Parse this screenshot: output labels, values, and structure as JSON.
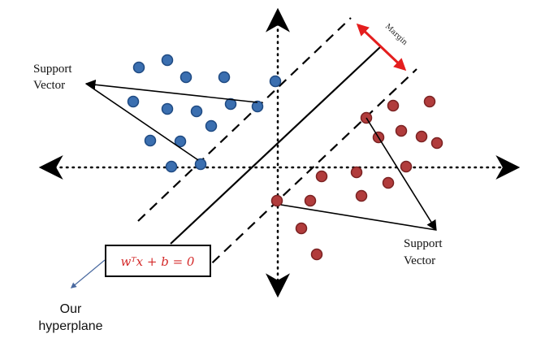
{
  "labels": {
    "support_vector_left_line1": "Support",
    "support_vector_left_line2": "Vector",
    "support_vector_right_line1": "Support",
    "support_vector_right_line2": "Vector",
    "margin": "Margin",
    "equation": "wᵀx + b = 0",
    "hyperplane_line1": "Our",
    "hyperplane_line2": "hyperplane"
  },
  "colors": {
    "blue_class": "#3b6fb0",
    "blue_stroke": "#1f4a82",
    "red_class": "#b13c3c",
    "red_stroke": "#7a2222",
    "margin_arrow": "#e41e1e",
    "equation_text": "#d42a2a",
    "hyperplane_pointer": "#4a6aa0"
  }
}
